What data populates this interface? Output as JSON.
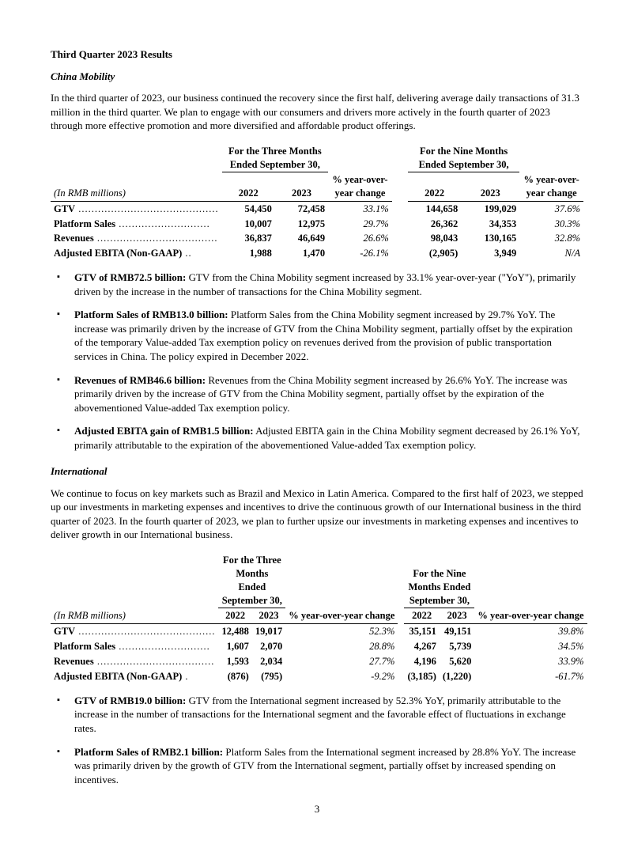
{
  "title": "Third Quarter 2023 Results",
  "page_number": "3",
  "segments": {
    "china": {
      "heading": "China Mobility",
      "intro": "In the third quarter of 2023, our business continued the recovery since the first half, delivering average daily transactions of 31.3 million in the third quarter.  We plan to engage with our consumers and drivers more actively in the fourth quarter of 2023 through more effective promotion and more diversified and affordable product offerings.",
      "table": {
        "stub_header": "(In RMB millions)",
        "group3": "For the Three Months Ended September 30,",
        "group9": "For the Nine Months Ended September 30,",
        "yrs": [
          "2022",
          "2023"
        ],
        "pct_hdr": "% year-over-year change",
        "rows": [
          {
            "label": "GTV",
            "dots": "  ...........................................",
            "v": [
              "54,450",
              "72,458",
              "33.1%",
              "144,658",
              "199,029",
              "37.6%"
            ]
          },
          {
            "label": "Platform Sales",
            "dots": "  ............................",
            "v": [
              "10,007",
              "12,975",
              "29.7%",
              "26,362",
              "34,353",
              "30.3%"
            ]
          },
          {
            "label": "Revenues",
            "dots": "  .....................................",
            "v": [
              "36,837",
              "46,649",
              "26.6%",
              "98,043",
              "130,165",
              "32.8%"
            ]
          },
          {
            "label": "Adjusted EBITA (Non-GAAP)",
            "dots": "  ..",
            "v": [
              "1,988",
              "1,470",
              "-26.1%",
              "(2,905)",
              "3,949",
              "N/A"
            ]
          }
        ]
      },
      "bullets": [
        {
          "lead": "GTV of RMB72.5 billion:",
          "text": " GTV from the China Mobility segment increased by 33.1% year-over-year (\"YoY\"), primarily driven by the increase in the number of transactions for the China Mobility segment."
        },
        {
          "lead": "Platform Sales of RMB13.0 billion:",
          "text": " Platform Sales from the China Mobility segment increased by 29.7% YoY. The increase was primarily driven by the increase of GTV from the China Mobility segment, partially offset by the expiration of the temporary Value-added Tax exemption policy on revenues derived from the provision of public transportation services in China. The policy expired in December 2022."
        },
        {
          "lead": "Revenues of RMB46.6 billion:",
          "text": " Revenues from the China Mobility segment increased by 26.6% YoY. The increase was primarily driven by the increase of GTV from the China Mobility segment, partially offset by the expiration of the abovementioned Value-added Tax exemption policy."
        },
        {
          "lead": "Adjusted EBITA gain of RMB1.5 billion:",
          "text": " Adjusted EBITA gain in the China Mobility segment decreased by 26.1% YoY, primarily attributable to the expiration of the abovementioned Value-added Tax exemption policy."
        }
      ]
    },
    "intl": {
      "heading": "International",
      "intro": "We continue to focus on key markets such as Brazil and Mexico in Latin America. Compared to the first half of 2023, we stepped up our investments in marketing expenses and incentives to drive the continuous growth of our International business in the third quarter of 2023. In the fourth quarter of 2023, we plan to further upsize our investments in marketing expenses and incentives to deliver growth in our International business.",
      "table": {
        "stub_header": "(In RMB millions)",
        "group3": "For the Three Months Ended September 30,",
        "group9": "For the Nine Months Ended September 30,",
        "yrs": [
          "2022",
          "2023"
        ],
        "pct_hdr": "% year-over-year change",
        "rows": [
          {
            "label": "GTV",
            "dots": "  ..........................................",
            "v": [
              "12,488",
              "19,017",
              "52.3%",
              "35,151",
              "49,151",
              "39.8%"
            ]
          },
          {
            "label": "Platform Sales",
            "dots": "  ............................",
            "v": [
              "1,607",
              "2,070",
              "28.8%",
              "4,267",
              "5,739",
              "34.5%"
            ]
          },
          {
            "label": "Revenues",
            "dots": "  ....................................",
            "v": [
              "1,593",
              "2,034",
              "27.7%",
              "4,196",
              "5,620",
              "33.9%"
            ]
          },
          {
            "label": "Adjusted EBITA (Non-GAAP)",
            "dots": "  .",
            "v": [
              "(876)",
              "(795)",
              "-9.2%",
              "(3,185)",
              "(1,220)",
              "-61.7%"
            ]
          }
        ]
      },
      "bullets": [
        {
          "lead": "GTV of RMB19.0 billion:",
          "text": " GTV from the International segment increased by 52.3% YoY, primarily attributable to the increase in the number of transactions for the International segment and the favorable effect of fluctuations in exchange rates."
        },
        {
          "lead": "Platform Sales of RMB2.1 billion:",
          "text": " Platform Sales from the International segment increased by 28.8% YoY. The increase was primarily driven by the growth of GTV from the International segment, partially offset by increased spending on incentives."
        }
      ]
    }
  }
}
